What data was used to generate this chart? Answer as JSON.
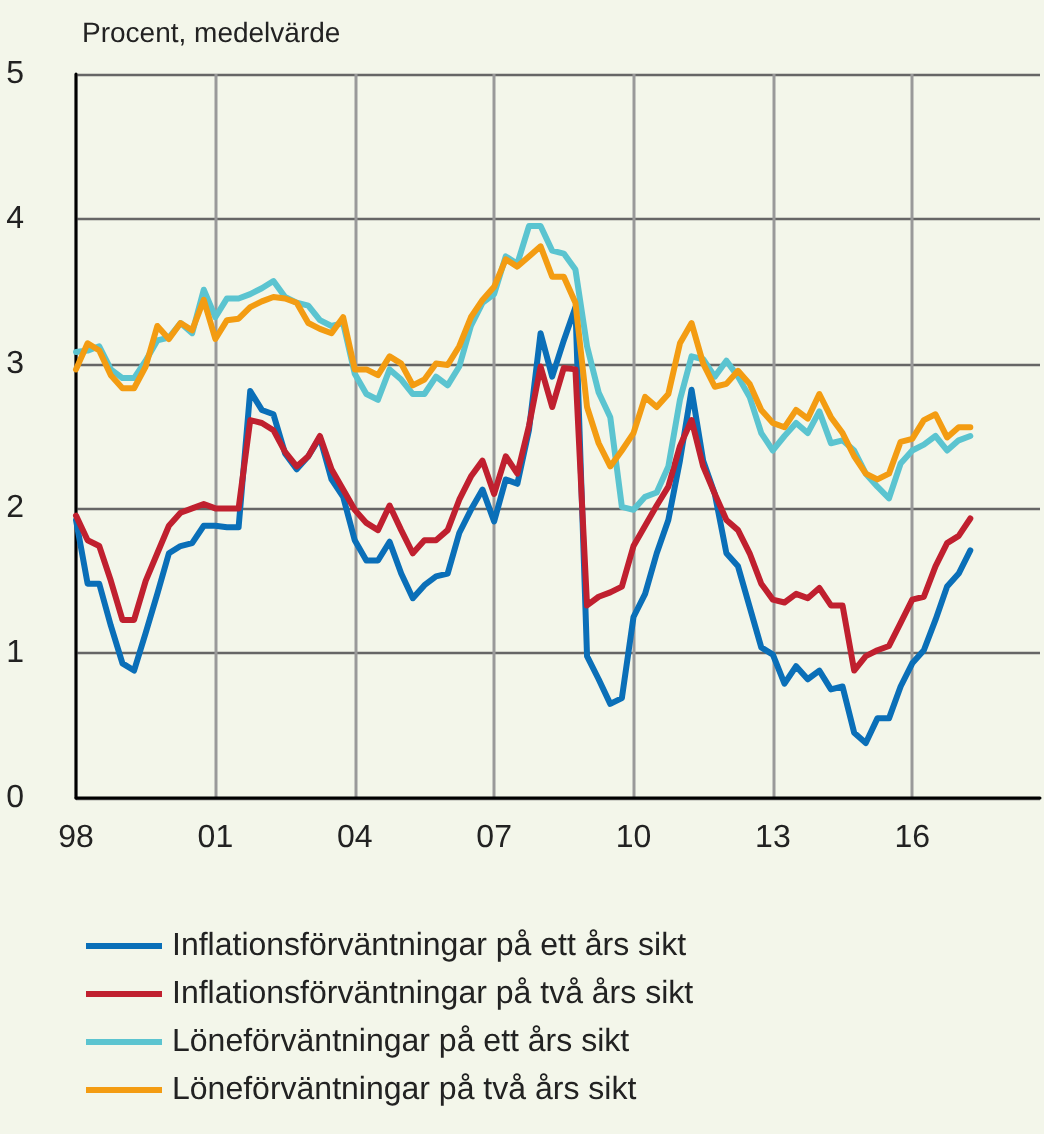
{
  "chart_data": {
    "type": "line",
    "ylabel": "Procent, medelvärde",
    "x": [
      1998,
      1998.25,
      1998.5,
      1998.75,
      1999,
      1999.25,
      1999.5,
      1999.75,
      2000,
      2000.25,
      2000.5,
      2000.75,
      2001,
      2001.25,
      2001.5,
      2001.75,
      2002,
      2002.25,
      2002.5,
      2002.75,
      2003,
      2003.25,
      2003.5,
      2003.75,
      2004,
      2004.25,
      2004.5,
      2004.75,
      2005,
      2005.25,
      2005.5,
      2005.75,
      2006,
      2006.25,
      2006.5,
      2006.75,
      2007,
      2007.25,
      2007.5,
      2007.75,
      2008,
      2008.25,
      2008.5,
      2008.75,
      2009,
      2009.25,
      2009.5,
      2009.75,
      2010,
      2010.25,
      2010.5,
      2010.75,
      2011,
      2011.25,
      2011.5,
      2011.75,
      2012,
      2012.25,
      2012.5,
      2012.75,
      2013,
      2013.25,
      2013.5,
      2013.75,
      2014,
      2014.25,
      2014.5,
      2014.75,
      2015,
      2015.25,
      2015.5,
      2015.75,
      2016,
      2016.25,
      2016.5,
      2016.75,
      2017,
      2017.25
    ],
    "series": [
      {
        "name": "Inflationsförväntningar på ett års sikt",
        "color": "#0a6fb8",
        "values": [
          1.92,
          1.48,
          1.48,
          1.19,
          0.93,
          0.88,
          1.14,
          1.41,
          1.69,
          1.74,
          1.76,
          1.88,
          1.88,
          1.87,
          1.87,
          2.81,
          2.68,
          2.65,
          2.38,
          2.27,
          2.36,
          2.49,
          2.2,
          2.08,
          1.78,
          1.64,
          1.64,
          1.77,
          1.55,
          1.38,
          1.47,
          1.53,
          1.55,
          1.83,
          1.99,
          2.13,
          1.91,
          2.2,
          2.17,
          2.54,
          3.21,
          2.91,
          3.16,
          3.39,
          0.98,
          0.82,
          0.65,
          0.69,
          1.25,
          1.41,
          1.69,
          1.92,
          2.33,
          2.82,
          2.33,
          2.1,
          1.69,
          1.6,
          1.32,
          1.04,
          0.99,
          0.79,
          0.91,
          0.82,
          0.88,
          0.75,
          0.77,
          0.45,
          0.38,
          0.55,
          0.55,
          0.77,
          0.93,
          1.02,
          1.23,
          1.46,
          1.55,
          1.71
        ]
      },
      {
        "name": "Inflationsförväntningar på två års sikt",
        "color": "#c0202f",
        "values": [
          1.95,
          1.78,
          1.74,
          1.5,
          1.23,
          1.23,
          1.5,
          1.69,
          1.88,
          1.97,
          2.0,
          2.03,
          2.0,
          2.0,
          2.0,
          2.61,
          2.59,
          2.54,
          2.39,
          2.29,
          2.36,
          2.5,
          2.27,
          2.13,
          1.99,
          1.9,
          1.85,
          2.02,
          1.85,
          1.69,
          1.78,
          1.78,
          1.85,
          2.06,
          2.22,
          2.33,
          2.1,
          2.36,
          2.24,
          2.57,
          2.98,
          2.7,
          2.97,
          2.96,
          1.33,
          1.39,
          1.42,
          1.46,
          1.74,
          1.88,
          2.02,
          2.15,
          2.43,
          2.61,
          2.29,
          2.1,
          1.92,
          1.85,
          1.69,
          1.48,
          1.37,
          1.35,
          1.41,
          1.38,
          1.45,
          1.33,
          1.33,
          0.88,
          0.98,
          1.02,
          1.05,
          1.21,
          1.37,
          1.39,
          1.6,
          1.76,
          1.81,
          1.93
        ]
      },
      {
        "name": "Löneförväntningar på ett års sikt",
        "color": "#5bc4d0",
        "values": [
          3.08,
          3.09,
          3.12,
          2.96,
          2.9,
          2.9,
          3.02,
          3.16,
          3.18,
          3.28,
          3.21,
          3.51,
          3.32,
          3.45,
          3.45,
          3.48,
          3.52,
          3.57,
          3.46,
          3.42,
          3.4,
          3.3,
          3.26,
          3.28,
          2.93,
          2.79,
          2.75,
          2.96,
          2.89,
          2.79,
          2.79,
          2.91,
          2.85,
          2.98,
          3.26,
          3.42,
          3.48,
          3.74,
          3.69,
          3.95,
          3.95,
          3.78,
          3.76,
          3.65,
          3.12,
          2.8,
          2.63,
          2.01,
          1.99,
          2.08,
          2.11,
          2.29,
          2.75,
          3.05,
          3.03,
          2.91,
          3.02,
          2.91,
          2.77,
          2.52,
          2.4,
          2.5,
          2.59,
          2.52,
          2.67,
          2.45,
          2.47,
          2.4,
          2.24,
          2.15,
          2.07,
          2.31,
          2.4,
          2.44,
          2.5,
          2.4,
          2.47,
          2.5
        ]
      },
      {
        "name": "Löneförväntningar på två års sikt",
        "color": "#f39c12",
        "values": [
          2.96,
          3.14,
          3.09,
          2.92,
          2.83,
          2.83,
          2.98,
          3.26,
          3.17,
          3.28,
          3.23,
          3.44,
          3.17,
          3.3,
          3.31,
          3.39,
          3.43,
          3.46,
          3.45,
          3.42,
          3.28,
          3.24,
          3.21,
          3.32,
          2.96,
          2.96,
          2.92,
          3.05,
          3.0,
          2.85,
          2.89,
          3.0,
          2.99,
          3.12,
          3.32,
          3.44,
          3.53,
          3.72,
          3.67,
          3.74,
          3.81,
          3.6,
          3.6,
          3.42,
          2.7,
          2.45,
          2.29,
          2.4,
          2.52,
          2.77,
          2.7,
          2.79,
          3.14,
          3.28,
          3.0,
          2.84,
          2.86,
          2.95,
          2.86,
          2.68,
          2.59,
          2.56,
          2.68,
          2.62,
          2.79,
          2.63,
          2.52,
          2.36,
          2.24,
          2.2,
          2.24,
          2.46,
          2.48,
          2.61,
          2.65,
          2.49,
          2.56,
          2.56
        ]
      }
    ],
    "xlim": [
      1998,
      2018.75
    ],
    "xticks": [
      {
        "value": 1998,
        "label": "98"
      },
      {
        "value": 2001,
        "label": "01"
      },
      {
        "value": 2004,
        "label": "04"
      },
      {
        "value": 2007,
        "label": "07"
      },
      {
        "value": 2010,
        "label": "10"
      },
      {
        "value": 2013,
        "label": "13"
      },
      {
        "value": 2016,
        "label": "16"
      }
    ],
    "ylim": [
      0,
      5
    ],
    "yticks": [
      0,
      1,
      2,
      3,
      4,
      5
    ],
    "grid": true,
    "legend": "bottom",
    "marker": "none",
    "line_style": "solid"
  }
}
